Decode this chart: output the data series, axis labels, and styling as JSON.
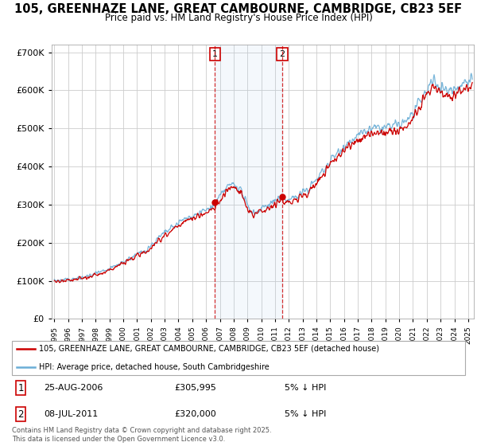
{
  "title": "105, GREENHAZE LANE, GREAT CAMBOURNE, CAMBRIDGE, CB23 5EF",
  "subtitle": "Price paid vs. HM Land Registry's House Price Index (HPI)",
  "legend_line1": "105, GREENHAZE LANE, GREAT CAMBOURNE, CAMBRIDGE, CB23 5EF (detached house)",
  "legend_line2": "HPI: Average price, detached house, South Cambridgeshire",
  "annotation1_date": "25-AUG-2006",
  "annotation1_price": "£305,995",
  "annotation1_hpi": "5% ↓ HPI",
  "annotation2_date": "08-JUL-2011",
  "annotation2_price": "£320,000",
  "annotation2_hpi": "5% ↓ HPI",
  "footer": "Contains HM Land Registry data © Crown copyright and database right 2025.\nThis data is licensed under the Open Government Licence v3.0.",
  "hpi_color": "#6baed6",
  "price_color": "#cc0000",
  "annotation_color": "#cc0000",
  "ylim": [
    0,
    720000
  ],
  "yticks": [
    0,
    100000,
    200000,
    300000,
    400000,
    500000,
    600000,
    700000
  ],
  "purchase1_year": 2006.65,
  "purchase1_price": 305995,
  "purchase2_year": 2011.52,
  "purchase2_price": 320000,
  "xmin": 1994.8,
  "xmax": 2025.4
}
